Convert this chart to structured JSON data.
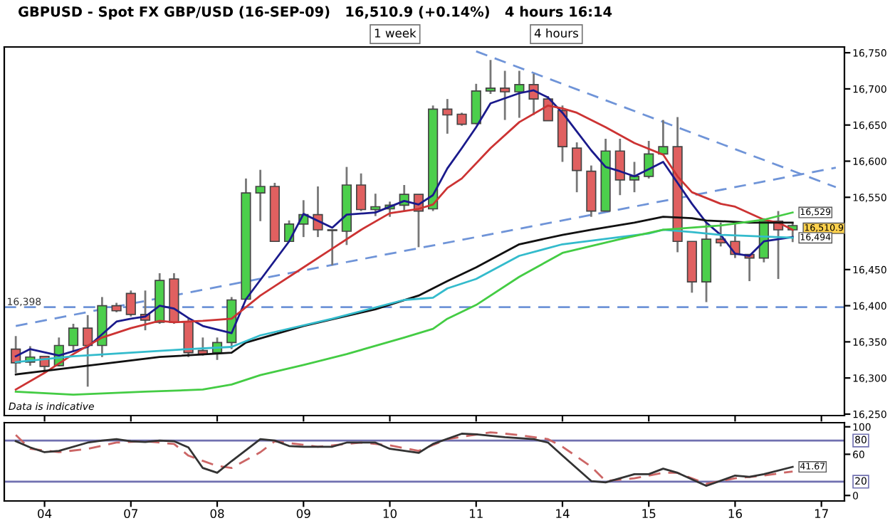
{
  "chart_data": [
    {
      "type": "candlestick",
      "title": "GBPUSD - Spot FX GBP/USD (16-SEP-09)   16,510.9 (+0.14%)   4 hours 16:14",
      "categories": [
        null,
        null,
        "04",
        null,
        null,
        null,
        null,
        null,
        "07",
        null,
        null,
        null,
        null,
        null,
        "08",
        null,
        null,
        null,
        null,
        null,
        "09",
        null,
        null,
        null,
        null,
        null,
        "10",
        null,
        null,
        null,
        null,
        null,
        "11",
        null,
        null,
        null,
        null,
        null,
        "14",
        null,
        null,
        null,
        null,
        null,
        "15",
        null,
        null,
        null,
        null,
        null,
        "16",
        null,
        null,
        null,
        null,
        null,
        "17",
        null
      ],
      "ohlc": [
        [
          16340,
          16358,
          16307,
          16321
        ],
        [
          16322,
          16344,
          16317,
          16329
        ],
        [
          16330,
          16330,
          16307,
          16316
        ],
        [
          16317,
          16356,
          16316,
          16345
        ],
        [
          16345,
          16375,
          16336,
          16369
        ],
        [
          16369,
          16387,
          16288,
          16345
        ],
        [
          16345,
          16412,
          16329,
          16400
        ],
        [
          16400,
          16404,
          16391,
          16393
        ],
        [
          16417,
          16421,
          16385,
          16388
        ],
        [
          16388,
          16421,
          16366,
          16380
        ],
        [
          16377,
          16445,
          16375,
          16435
        ],
        [
          16437,
          16445,
          16375,
          16377
        ],
        [
          16378,
          16382,
          16329,
          16335
        ],
        [
          16338,
          16356,
          16331,
          16333
        ],
        [
          16335,
          16356,
          16325,
          16349
        ],
        [
          16349,
          16412,
          16340,
          16408
        ],
        [
          16409,
          16576,
          16409,
          16556
        ],
        [
          16556,
          16588,
          16517,
          16565
        ],
        [
          16565,
          16570,
          16489,
          16489
        ],
        [
          16489,
          16518,
          16489,
          16513
        ],
        [
          16513,
          16546,
          16495,
          16526
        ],
        [
          16526,
          16565,
          16495,
          16505
        ],
        [
          16505,
          16505,
          16456,
          16504
        ],
        [
          16503,
          16592,
          16484,
          16567
        ],
        [
          16567,
          16583,
          16531,
          16533
        ],
        [
          16533,
          16555,
          16524,
          16537
        ],
        [
          16534,
          16544,
          16523,
          16539
        ],
        [
          16539,
          16567,
          16531,
          16554
        ],
        [
          16554,
          16554,
          16481,
          16531
        ],
        [
          16534,
          16677,
          16531,
          16672
        ],
        [
          16672,
          16686,
          16638,
          16664
        ],
        [
          16665,
          16667,
          16649,
          16651
        ],
        [
          16652,
          16707,
          16651,
          16697
        ],
        [
          16697,
          16740,
          16693,
          16701
        ],
        [
          16701,
          16725,
          16657,
          16696
        ],
        [
          16696,
          16725,
          16660,
          16706
        ],
        [
          16706,
          16721,
          16664,
          16686
        ],
        [
          16686,
          16690,
          16656,
          16656
        ],
        [
          16670,
          16677,
          16599,
          16620
        ],
        [
          16618,
          16626,
          16557,
          16587
        ],
        [
          16586,
          16594,
          16523,
          16531
        ],
        [
          16531,
          16631,
          16531,
          16614
        ],
        [
          16614,
          16631,
          16553,
          16574
        ],
        [
          16574,
          16599,
          16557,
          16579
        ],
        [
          16579,
          16628,
          16576,
          16610
        ],
        [
          16610,
          16657,
          16609,
          16620
        ],
        [
          16620,
          16661,
          16474,
          16489
        ],
        [
          16489,
          16489,
          16418,
          16433
        ],
        [
          16433,
          16515,
          16405,
          16492
        ],
        [
          16492,
          16515,
          16482,
          16487
        ],
        [
          16489,
          16515,
          16466,
          16471
        ],
        [
          16471,
          16471,
          16434,
          16466
        ],
        [
          16466,
          16521,
          16460,
          16518
        ],
        [
          16517,
          16531,
          16437,
          16505
        ],
        [
          16505,
          16515,
          16488,
          16510.9
        ],
        null,
        null,
        null
      ],
      "colors": [
        "#e06060",
        "#4ccf4c",
        "#e06060",
        "#4ccf4c",
        "#4ccf4c",
        "#e06060",
        "#4ccf4c",
        "#e06060",
        "#e06060",
        "#e06060",
        "#4ccf4c",
        "#e06060",
        "#e06060",
        "#e06060",
        "#4ccf4c",
        "#4ccf4c",
        "#4ccf4c",
        "#4ccf4c",
        "#e06060",
        "#4ccf4c",
        "#4ccf4c",
        "#e06060",
        "#e06060",
        "#4ccf4c",
        "#e06060",
        "#4ccf4c",
        "#4ccf4c",
        "#4ccf4c",
        "#e06060",
        "#4ccf4c",
        "#e06060",
        "#e06060",
        "#4ccf4c",
        "#4ccf4c",
        "#e06060",
        "#4ccf4c",
        "#e06060",
        "#e06060",
        "#e06060",
        "#e06060",
        "#e06060",
        "#4ccf4c",
        "#e06060",
        "#4ccf4c",
        "#4ccf4c",
        "#4ccf4c",
        "#e06060",
        "#e06060",
        "#4ccf4c",
        "#e06060",
        "#e06060",
        "#e06060",
        "#4ccf4c",
        "#e06060",
        "#4ccf4c",
        null,
        null,
        null
      ],
      "series": [
        {
          "type": "line",
          "color": "#1a1a8c",
          "values": [
            16330,
            16340,
            null,
            16331,
            null,
            16343,
            null,
            16378,
            16382,
            16385,
            16400,
            16396,
            16383,
            16372,
            null,
            16362,
            16409,
            null,
            null,
            16489,
            16527,
            null,
            16508,
            16526,
            null,
            16529,
            null,
            16545,
            16540,
            16553,
            16590,
            16618,
            16647,
            16680,
            null,
            16694,
            16698,
            16688,
            16667,
            16641,
            16615,
            16592,
            16586,
            16579,
            16589,
            16599,
            16570,
            16541,
            16515,
            16498,
            16472,
            16469,
            16489,
            16492,
            16495,
            null,
            null,
            null
          ]
        },
        {
          "type": "line",
          "color": "#cc3333",
          "values": [
            16284,
            null,
            16307,
            null,
            16333,
            null,
            16356,
            null,
            16369,
            null,
            16379,
            16377,
            null,
            16379,
            null,
            16382,
            16398,
            16414,
            16427,
            null,
            16453,
            null,
            16479,
            null,
            16505,
            null,
            16528,
            null,
            16534,
            16540,
            16563,
            16576,
            null,
            16618,
            null,
            16654,
            null,
            16677,
            16673,
            16667,
            null,
            16647,
            null,
            16625,
            null,
            16609,
            16579,
            16557,
            null,
            16541,
            16537,
            null,
            16519,
            16515,
            16505,
            null,
            null,
            null
          ]
        },
        {
          "type": "line",
          "color": "#111111",
          "values": [
            16305,
            null,
            null,
            null,
            null,
            16317,
            null,
            null,
            null,
            null,
            16329,
            null,
            null,
            null,
            null,
            16335,
            16349,
            null,
            null,
            null,
            16372,
            null,
            null,
            null,
            null,
            16395,
            null,
            null,
            16414,
            null,
            16434,
            null,
            16453,
            null,
            null,
            16485,
            null,
            null,
            16498,
            null,
            16505,
            null,
            null,
            16515,
            null,
            16523,
            null,
            16521,
            16518,
            null,
            null,
            16515,
            null,
            null,
            16515,
            null,
            null,
            null
          ]
        },
        {
          "type": "line",
          "color": "#33bbcc",
          "values": [
            16322,
            null,
            null,
            null,
            16330,
            null,
            null,
            null,
            null,
            null,
            null,
            null,
            16340,
            null,
            null,
            16343,
            null,
            16359,
            null,
            null,
            null,
            null,
            16382,
            null,
            null,
            null,
            null,
            16408,
            null,
            16411,
            16424,
            null,
            16437,
            null,
            null,
            16469,
            null,
            null,
            16485,
            null,
            null,
            null,
            16495,
            null,
            16500,
            16505,
            null,
            16502,
            null,
            16498,
            null,
            null,
            null,
            null,
            16494,
            null,
            null,
            null
          ]
        },
        {
          "type": "line",
          "color": "#44cc44",
          "values": [
            16281,
            null,
            null,
            null,
            16277,
            null,
            null,
            null,
            null,
            16281,
            null,
            null,
            null,
            16284,
            null,
            16291,
            null,
            16304,
            null,
            null,
            16318,
            null,
            null,
            16333,
            null,
            null,
            null,
            16356,
            null,
            16368,
            16382,
            null,
            16401,
            null,
            null,
            16440,
            null,
            null,
            16473,
            null,
            null,
            null,
            16492,
            null,
            null,
            16505,
            null,
            16508,
            null,
            16511,
            null,
            null,
            16519,
            null,
            16529,
            null,
            null,
            null
          ]
        },
        {
          "type": "line",
          "color": "#6f94d8",
          "line_style": "dashed",
          "values": [
            null,
            null,
            null,
            null,
            null,
            null,
            null,
            null,
            null,
            null,
            null,
            null,
            null,
            null,
            null,
            null,
            null,
            null,
            null,
            null,
            null,
            null,
            null,
            null,
            null,
            null,
            null,
            null,
            null,
            null,
            null,
            null,
            16752,
            null,
            null,
            null,
            null,
            null,
            null,
            null,
            null,
            null,
            null,
            null,
            null,
            null,
            null,
            null,
            null,
            null,
            null,
            null,
            null,
            null,
            null,
            null,
            null,
            16564
          ]
        },
        {
          "type": "line",
          "color": "#6f94d8",
          "line_style": "dashed",
          "values": [
            16372,
            null,
            null,
            null,
            null,
            null,
            null,
            null,
            null,
            null,
            null,
            null,
            null,
            null,
            null,
            null,
            null,
            null,
            null,
            null,
            null,
            null,
            null,
            null,
            null,
            null,
            null,
            null,
            null,
            null,
            null,
            null,
            null,
            null,
            null,
            null,
            null,
            null,
            null,
            null,
            null,
            null,
            null,
            null,
            null,
            null,
            null,
            null,
            null,
            null,
            null,
            null,
            null,
            null,
            null,
            null,
            null,
            16591
          ]
        }
      ],
      "ref_lines": [
        {
          "axis": "y",
          "value": 16398,
          "label": "16,398",
          "color": "#6f94d8",
          "line_style": "dashed"
        }
      ],
      "ylim": [
        16248,
        16758
      ],
      "yticks": [
        {
          "value": 16250,
          "label": "16,250"
        },
        {
          "value": 16300,
          "label": "16,300"
        },
        {
          "value": 16350,
          "label": "16,350"
        },
        {
          "value": 16400,
          "label": "16,400"
        },
        {
          "value": 16450,
          "label": "16,450"
        },
        {
          "value": 16550,
          "label": "16,550"
        },
        {
          "value": 16600,
          "label": "16,600"
        },
        {
          "value": 16650,
          "label": "16,650"
        },
        {
          "value": 16700,
          "label": "16,700"
        },
        {
          "value": 16750,
          "label": "16,750"
        }
      ],
      "tick_labels": "y",
      "grid": false,
      "legend": false,
      "annotations": [
        "1 week",
        "4 hours",
        "Data is indicative",
        {
          "text": "16,529",
          "y": 16529
        },
        "16,510.9",
        {
          "text": "16,494",
          "y": 16494
        }
      ]
    },
    {
      "type": "line",
      "categories": [
        null,
        null,
        "04",
        null,
        null,
        null,
        null,
        null,
        "07",
        null,
        null,
        null,
        null,
        null,
        "08",
        null,
        null,
        null,
        null,
        null,
        "09",
        null,
        null,
        null,
        null,
        null,
        "10",
        null,
        null,
        null,
        null,
        null,
        "11",
        null,
        null,
        null,
        null,
        null,
        "14",
        null,
        null,
        null,
        null,
        null,
        "15",
        null,
        null,
        null,
        null,
        null,
        "16",
        null,
        null,
        null,
        null,
        null,
        "17",
        null
      ],
      "series": [
        {
          "color": "#333333",
          "values": [
            79,
            70,
            63,
            65,
            null,
            77,
            80,
            82,
            79,
            78,
            80,
            79,
            70,
            40,
            33,
            50,
            null,
            82,
            80,
            72,
            71,
            null,
            71,
            77,
            null,
            77,
            68,
            null,
            62,
            75,
            null,
            90,
            89,
            null,
            85,
            null,
            82,
            77,
            58,
            null,
            21,
            19,
            null,
            31,
            31,
            39,
            33,
            null,
            14,
            null,
            29,
            27,
            31,
            null,
            41.67,
            null,
            null,
            null
          ]
        },
        {
          "color": "#cc6666",
          "line_style": "dashed",
          "values": [
            88,
            68,
            null,
            63,
            null,
            68,
            null,
            77,
            null,
            79,
            null,
            75,
            58,
            null,
            43,
            40,
            null,
            63,
            79,
            null,
            null,
            71,
            null,
            null,
            77,
            null,
            73,
            null,
            65,
            null,
            82,
            null,
            null,
            92,
            null,
            88,
            null,
            82,
            71,
            null,
            42,
            21,
            null,
            25,
            null,
            33,
            33,
            null,
            17,
            null,
            25,
            null,
            29,
            null,
            35,
            null,
            null,
            null
          ]
        }
      ],
      "ref_lines": [
        {
          "axis": "y",
          "value": 80,
          "label": "80",
          "color": "#7070b0"
        },
        {
          "axis": "y",
          "value": 20,
          "label": "20",
          "color": "#7070b0"
        }
      ],
      "ylim": [
        -8,
        106
      ],
      "yticks": [
        0,
        60,
        100
      ],
      "grid": false,
      "legend": false,
      "annotations": [
        {
          "text": "41.67",
          "y": 41.67
        }
      ]
    }
  ]
}
